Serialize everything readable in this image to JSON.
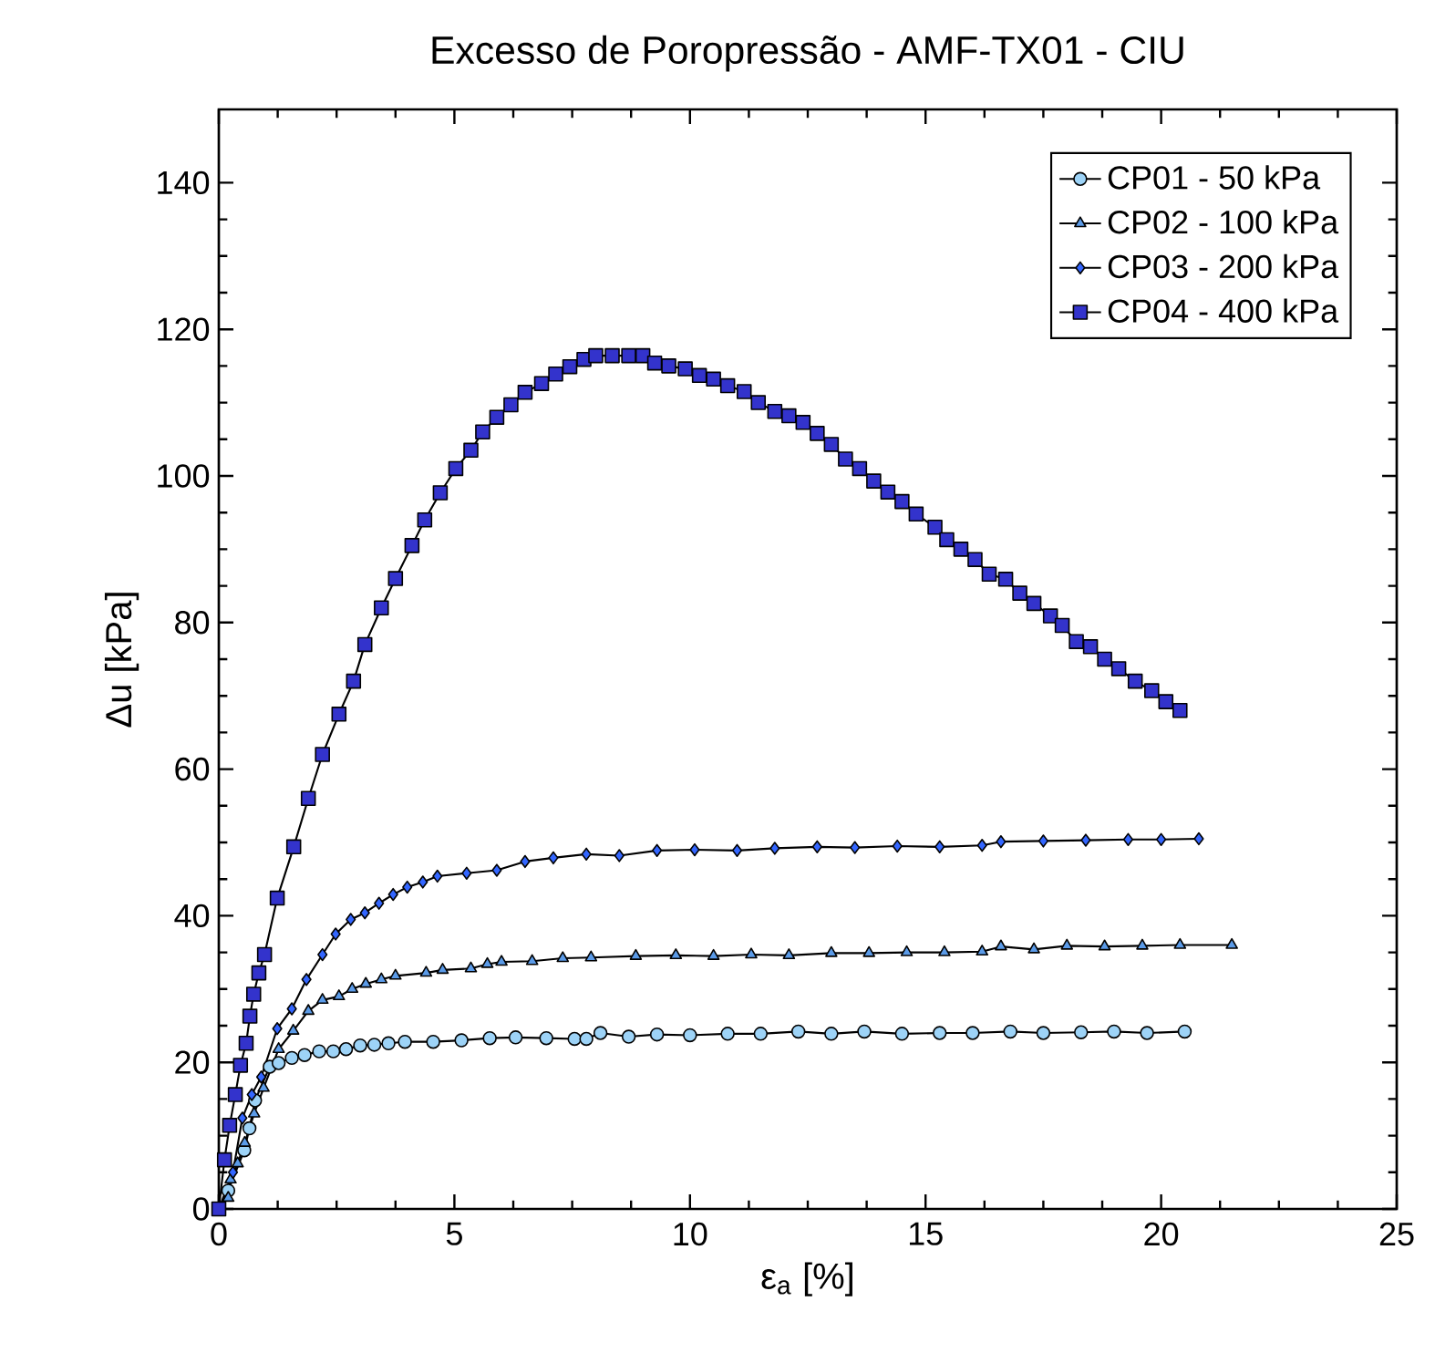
{
  "chart_data": {
    "type": "line",
    "title": "Excesso de Poropressão - AMF-TX01 - CIU",
    "xlabel": "ε$_{a}$ [%]",
    "ylabel": "Δu [kPa]",
    "xlim": [
      0,
      25
    ],
    "xticks": [
      0,
      5,
      10,
      15,
      20,
      25
    ],
    "ylim": [
      0,
      150
    ],
    "yticks": [
      0,
      20,
      40,
      60,
      80,
      100,
      120,
      140
    ],
    "grid": false,
    "legend": "top right",
    "line_style": "solid",
    "series": [
      {
        "name": "CP01 - 50 kPa",
        "color": "#9dd3f7",
        "marker": "circle",
        "x": [
          0,
          0.2,
          0.4,
          0.54,
          0.65,
          0.77,
          0.9,
          1.08,
          1.27,
          1.55,
          1.82,
          2.13,
          2.43,
          2.7,
          3.0,
          3.3,
          3.6,
          3.95,
          4.55,
          5.15,
          5.75,
          6.3,
          6.95,
          7.55,
          7.8,
          8.1,
          8.7,
          9.3,
          10,
          10.8,
          11.5,
          12.3,
          13,
          13.7,
          14.5,
          15.3,
          16,
          16.8,
          17.5,
          18.3,
          19,
          19.7,
          20.5
        ],
        "values": [
          0,
          2.5,
          null,
          8,
          11,
          14.8,
          null,
          19.4,
          19.9,
          20.6,
          21,
          21.5,
          21.5,
          21.8,
          22.3,
          22.4,
          22.6,
          22.8,
          22.8,
          23,
          23.3,
          23.4,
          23.3,
          23.2,
          23.2,
          24,
          23.5,
          23.8,
          23.7,
          23.9,
          23.9,
          24.2,
          23.9,
          24.2,
          23.9,
          24,
          24,
          24.2,
          24,
          24.1,
          24.2,
          24,
          24.2
        ]
      },
      {
        "name": "CP02 - 100 kPa",
        "color": "#5b9be8",
        "marker": "triangle",
        "x": [
          0,
          0.2,
          0.25,
          0.4,
          0.55,
          0.75,
          0.95,
          1.27,
          1.58,
          1.9,
          2.2,
          2.55,
          2.83,
          3.12,
          3.45,
          3.75,
          4.4,
          4.75,
          5.35,
          5.7,
          6,
          6.65,
          7.3,
          7.9,
          8.85,
          9.7,
          10.5,
          11.3,
          12.1,
          13,
          13.8,
          14.6,
          15.4,
          16.2,
          16.6,
          17.3,
          18,
          18.8,
          19.6,
          20.4,
          21.5
        ],
        "values": [
          0,
          1.5,
          4,
          6.2,
          9,
          13,
          16.5,
          21.8,
          24.3,
          27,
          28.5,
          29,
          30,
          30.7,
          31.3,
          31.8,
          32.2,
          32.6,
          32.8,
          33.4,
          33.7,
          33.8,
          34.2,
          34.3,
          34.5,
          34.6,
          34.5,
          34.7,
          34.6,
          34.9,
          34.9,
          35,
          35,
          35.1,
          35.8,
          35.4,
          35.9,
          35.8,
          35.9,
          36,
          36
        ]
      },
      {
        "name": "CP03 - 200 kPa",
        "color": "#3366ff",
        "marker": "diamond",
        "x": [
          0,
          0.3,
          0.5,
          0.7,
          0.9,
          1.24,
          1.55,
          1.86,
          2.2,
          2.48,
          2.8,
          3.1,
          3.4,
          3.7,
          4.0,
          4.33,
          4.64,
          5.26,
          5.9,
          6.5,
          7.1,
          7.8,
          8.5,
          9.3,
          10.1,
          11,
          11.8,
          12.7,
          13.5,
          14.4,
          15.3,
          16.2,
          16.6,
          17.5,
          18.4,
          19.3,
          20,
          20.8
        ],
        "values": [
          0,
          5,
          12.4,
          15.6,
          18,
          24.6,
          27.3,
          31.3,
          34.7,
          37.5,
          39.5,
          40.4,
          41.7,
          42.9,
          43.9,
          44.6,
          45.4,
          45.8,
          46.2,
          47.4,
          47.9,
          48.4,
          48.2,
          48.9,
          49,
          48.9,
          49.2,
          49.4,
          49.3,
          49.5,
          49.4,
          49.6,
          50.1,
          50.2,
          50.3,
          50.4,
          50.4,
          50.5
        ]
      },
      {
        "name": "CP04 - 400 kPa",
        "color": "#3333cc",
        "marker": "square",
        "x": [
          0,
          0.12,
          0.23,
          0.35,
          0.46,
          0.58,
          0.66,
          0.74,
          0.85,
          0.97,
          1.24,
          1.59,
          1.9,
          2.2,
          2.55,
          2.86,
          3.1,
          3.45,
          3.75,
          4.1,
          4.37,
          4.7,
          5.03,
          5.35,
          5.6,
          5.9,
          6.2,
          6.5,
          6.85,
          7.15,
          7.45,
          7.75,
          8.0,
          8.35,
          8.7,
          9.0,
          9.25,
          9.55,
          9.9,
          10.2,
          10.5,
          10.8,
          11.15,
          11.45,
          11.8,
          12.1,
          12.4,
          12.7,
          13,
          13.3,
          13.6,
          13.9,
          14.2,
          14.5,
          14.8,
          15.2,
          15.45,
          15.75,
          16.05,
          16.35,
          16.7,
          17,
          17.3,
          17.65,
          17.9,
          18.2,
          18.5,
          18.8,
          19.1,
          19.45,
          19.8,
          20.1,
          20.4
        ],
        "values": [
          0,
          6.7,
          11.4,
          15.6,
          19.6,
          22.6,
          26.3,
          29.3,
          32.2,
          34.7,
          42.4,
          49.4,
          56,
          62,
          67.5,
          72,
          77,
          82,
          86,
          90.5,
          94,
          97.7,
          101,
          103.5,
          106,
          108,
          109.7,
          111.4,
          112.6,
          113.9,
          114.9,
          115.9,
          116.4,
          116.4,
          116.4,
          116.4,
          115.4,
          115,
          114.6,
          113.7,
          113.2,
          112.3,
          111.5,
          110,
          108.8,
          108.2,
          107.3,
          105.8,
          104.3,
          102.3,
          101,
          99.3,
          97.8,
          96.5,
          94.8,
          93,
          91.3,
          90,
          88.6,
          86.6,
          85.9,
          84,
          82.6,
          80.9,
          79.6,
          77.4,
          76.7,
          75,
          73.7,
          72,
          70.7,
          69.2,
          68
        ]
      }
    ]
  }
}
